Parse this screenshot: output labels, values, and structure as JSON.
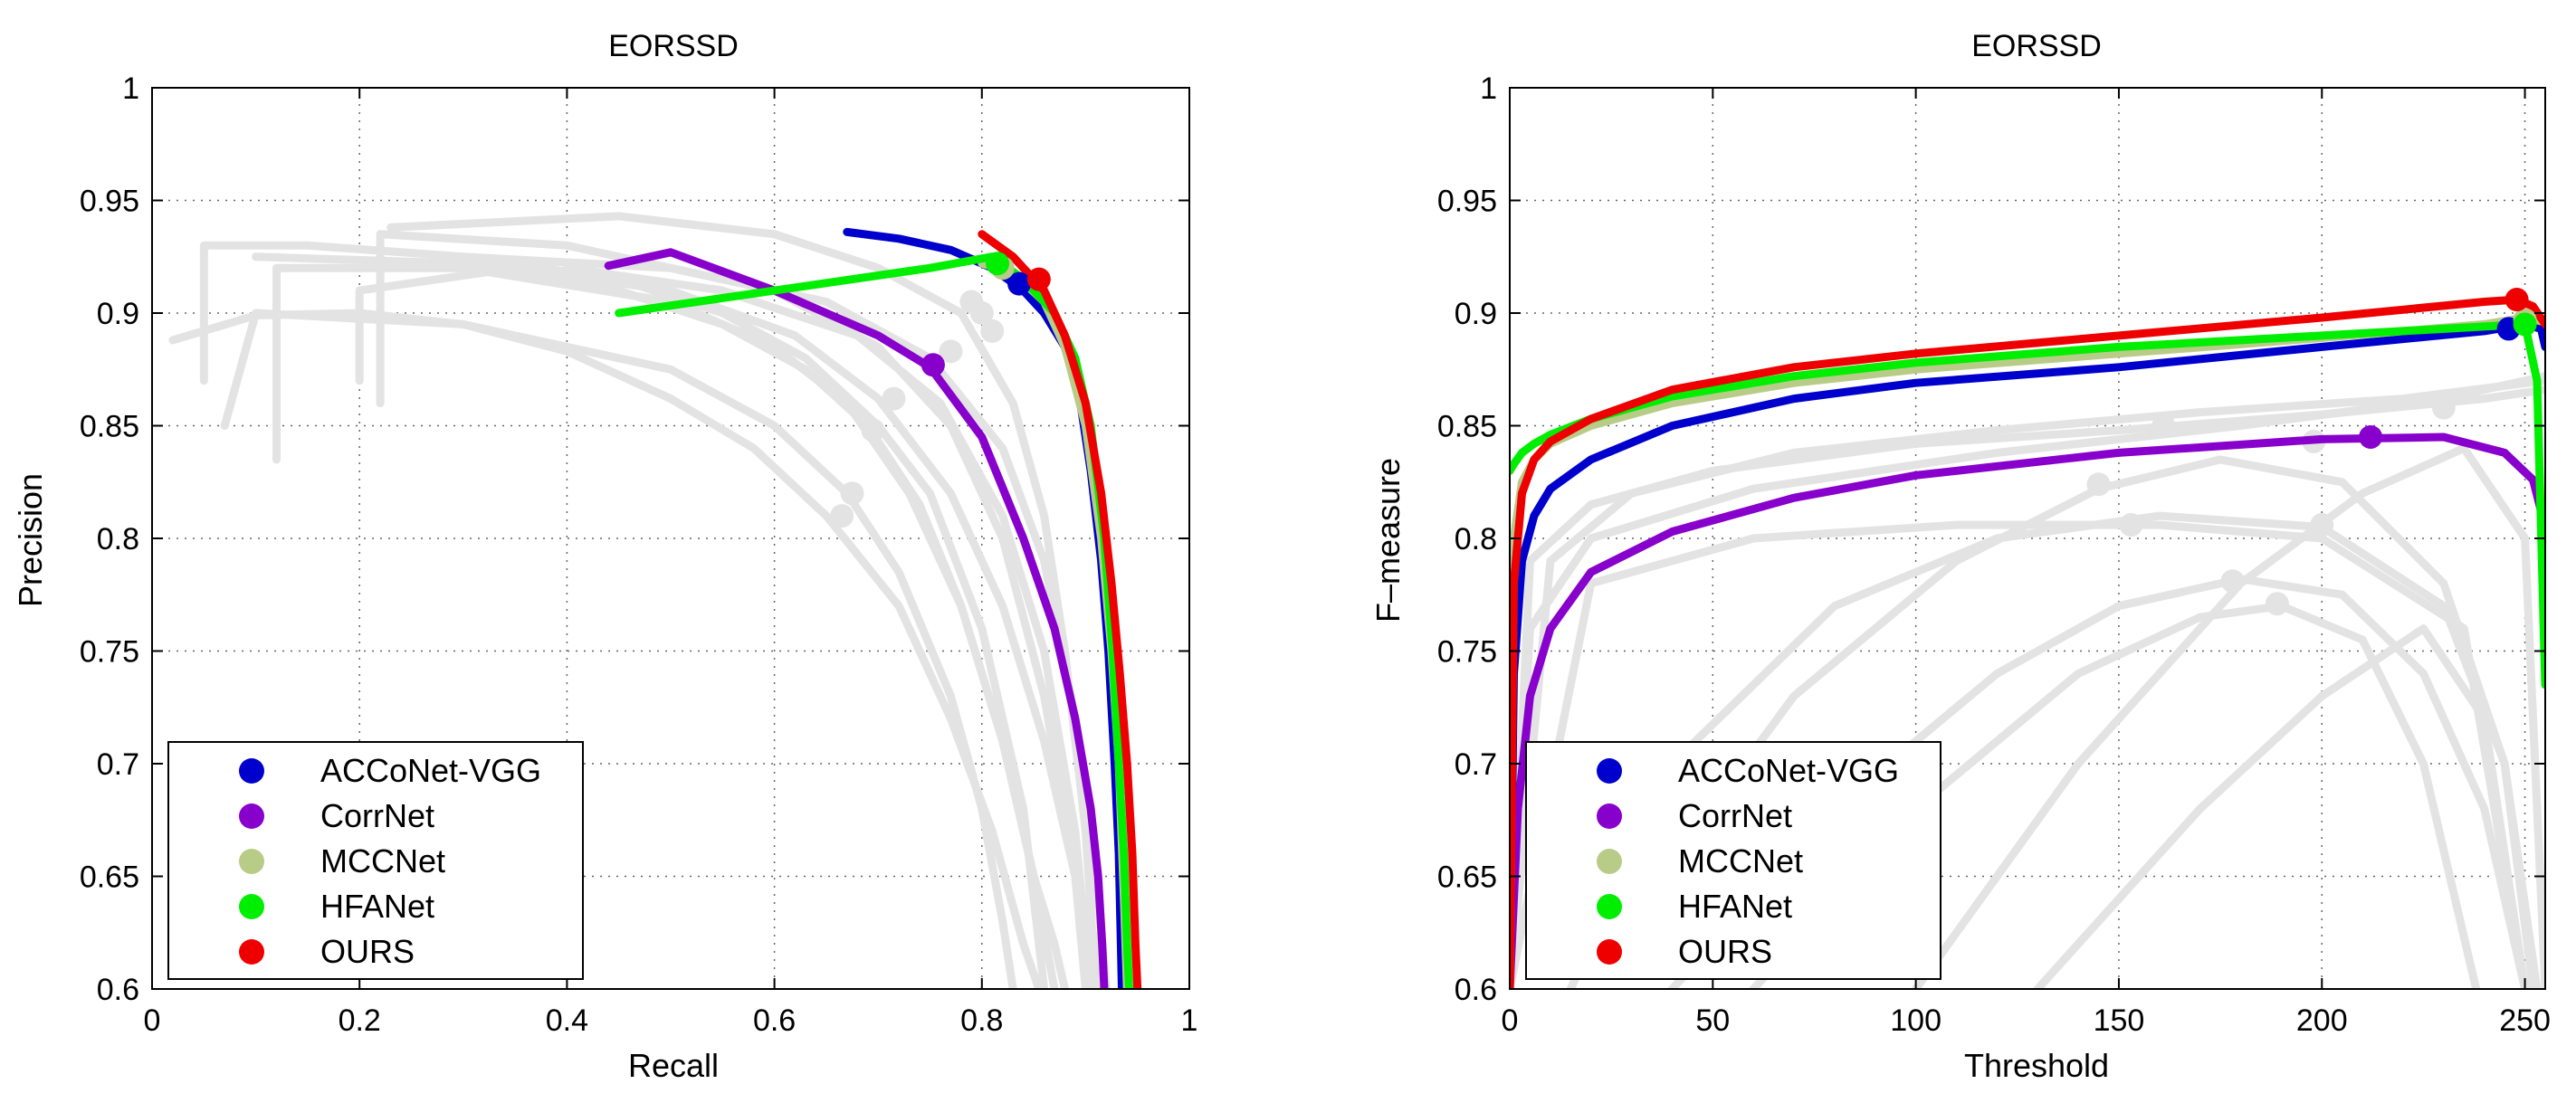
{
  "chart_data": [
    {
      "type": "line",
      "title": "EORSSD",
      "xlabel": "Recall",
      "ylabel": "Precision",
      "xlim": [
        0,
        1
      ],
      "ylim": [
        0.6,
        1
      ],
      "xticks": [
        0,
        0.2,
        0.4,
        0.6,
        0.8,
        1
      ],
      "xtick_labels": [
        "0",
        "0.2",
        "0.4",
        "0.6",
        "0.8",
        "1"
      ],
      "yticks": [
        0.6,
        0.65,
        0.7,
        0.75,
        0.8,
        0.85,
        0.9,
        0.95,
        1
      ],
      "ytick_labels": [
        "0.6",
        "0.65",
        "0.7",
        "0.75",
        "0.8",
        "0.85",
        "0.9",
        "0.95",
        "1"
      ],
      "grid": true,
      "legend_position": "bottom-left",
      "series": [
        {
          "name": "ACCoNet-VGG",
          "color": "#0000cc",
          "x": [
            0.67,
            0.72,
            0.77,
            0.81,
            0.84,
            0.86,
            0.88,
            0.895,
            0.905,
            0.915,
            0.922,
            0.928,
            0.932,
            0.934,
            0.935
          ],
          "y": [
            0.936,
            0.933,
            0.928,
            0.92,
            0.91,
            0.9,
            0.885,
            0.86,
            0.83,
            0.79,
            0.75,
            0.7,
            0.66,
            0.62,
            0.6
          ],
          "marker": {
            "x": 0.836,
            "y": 0.913
          }
        },
        {
          "name": "CorrNet",
          "color": "#8800cc",
          "x": [
            0.44,
            0.5,
            0.6,
            0.7,
            0.75,
            0.8,
            0.84,
            0.87,
            0.89,
            0.905,
            0.912,
            0.916,
            0.918
          ],
          "y": [
            0.921,
            0.927,
            0.91,
            0.89,
            0.876,
            0.845,
            0.8,
            0.76,
            0.72,
            0.68,
            0.65,
            0.62,
            0.6
          ],
          "marker": {
            "x": 0.753,
            "y": 0.877
          }
        },
        {
          "name": "MCCNet",
          "color": "#b8cc88",
          "x": [
            0.8,
            0.83,
            0.86,
            0.88,
            0.9,
            0.915,
            0.925,
            0.932,
            0.937,
            0.94
          ],
          "y": [
            0.922,
            0.918,
            0.905,
            0.885,
            0.85,
            0.8,
            0.75,
            0.7,
            0.64,
            0.6
          ],
          "marker": {
            "x": 0.82,
            "y": 0.92
          }
        },
        {
          "name": "HFANet",
          "color": "#00ee00",
          "x": [
            0.45,
            0.6,
            0.75,
            0.81,
            0.84,
            0.87,
            0.89,
            0.905,
            0.918,
            0.926,
            0.932,
            0.937,
            0.94,
            0.942
          ],
          "y": [
            0.9,
            0.91,
            0.92,
            0.925,
            0.915,
            0.9,
            0.88,
            0.85,
            0.8,
            0.75,
            0.7,
            0.66,
            0.62,
            0.6
          ],
          "marker": {
            "x": 0.815,
            "y": 0.922
          }
        },
        {
          "name": "OURS",
          "color": "#ee0000",
          "x": [
            0.8,
            0.83,
            0.86,
            0.88,
            0.9,
            0.915,
            0.925,
            0.933,
            0.94,
            0.945,
            0.948,
            0.95
          ],
          "y": [
            0.935,
            0.925,
            0.91,
            0.89,
            0.86,
            0.82,
            0.78,
            0.74,
            0.7,
            0.66,
            0.62,
            0.6
          ],
          "marker": {
            "x": 0.855,
            "y": 0.915
          }
        }
      ],
      "background_series": [
        {
          "x": [
            0.05,
            0.05,
            0.15,
            0.3,
            0.45,
            0.55,
            0.63,
            0.7,
            0.75,
            0.8,
            0.84,
            0.86
          ],
          "y": [
            0.87,
            0.93,
            0.93,
            0.925,
            0.915,
            0.9,
            0.88,
            0.85,
            0.82,
            0.76,
            0.68,
            0.6
          ]
        },
        {
          "x": [
            0.02,
            0.1,
            0.2,
            0.3,
            0.4,
            0.5,
            0.58,
            0.65,
            0.72,
            0.77,
            0.81,
            0.84,
            0.855
          ],
          "y": [
            0.888,
            0.899,
            0.9,
            0.895,
            0.883,
            0.862,
            0.84,
            0.81,
            0.77,
            0.72,
            0.67,
            0.62,
            0.6
          ]
        },
        {
          "x": [
            0.12,
            0.12,
            0.3,
            0.5,
            0.6,
            0.67,
            0.73,
            0.78,
            0.82,
            0.85,
            0.87
          ],
          "y": [
            0.835,
            0.92,
            0.92,
            0.905,
            0.885,
            0.86,
            0.82,
            0.77,
            0.71,
            0.65,
            0.6
          ]
        },
        {
          "x": [
            0.22,
            0.22,
            0.4,
            0.6,
            0.7,
            0.77,
            0.82,
            0.86,
            0.89,
            0.9
          ],
          "y": [
            0.86,
            0.935,
            0.93,
            0.91,
            0.885,
            0.85,
            0.8,
            0.73,
            0.65,
            0.6
          ]
        },
        {
          "x": [
            0.23,
            0.45,
            0.6,
            0.7,
            0.78,
            0.83,
            0.86,
            0.88,
            0.9,
            0.91
          ],
          "y": [
            0.938,
            0.943,
            0.935,
            0.92,
            0.9,
            0.86,
            0.81,
            0.75,
            0.67,
            0.6
          ]
        },
        {
          "x": [
            0.1,
            0.3,
            0.45,
            0.55,
            0.63,
            0.69,
            0.74,
            0.78,
            0.82,
            0.85,
            0.87,
            0.88
          ],
          "y": [
            0.925,
            0.922,
            0.91,
            0.895,
            0.875,
            0.85,
            0.815,
            0.77,
            0.71,
            0.65,
            0.62,
            0.6
          ]
        },
        {
          "x": [
            0.2,
            0.2,
            0.35,
            0.5,
            0.62,
            0.7,
            0.77,
            0.82,
            0.86,
            0.89,
            0.91,
            0.92
          ],
          "y": [
            0.87,
            0.91,
            0.92,
            0.91,
            0.89,
            0.862,
            0.82,
            0.77,
            0.71,
            0.65,
            0.62,
            0.6
          ]
        },
        {
          "x": [
            0.07,
            0.1,
            0.3,
            0.5,
            0.6,
            0.67,
            0.72,
            0.77,
            0.8,
            0.82,
            0.83
          ],
          "y": [
            0.85,
            0.9,
            0.895,
            0.875,
            0.85,
            0.82,
            0.785,
            0.73,
            0.68,
            0.63,
            0.6
          ]
        },
        {
          "x": [
            0.3,
            0.5,
            0.65,
            0.75,
            0.82,
            0.86,
            0.89,
            0.91,
            0.92
          ],
          "y": [
            0.925,
            0.92,
            0.905,
            0.88,
            0.84,
            0.79,
            0.72,
            0.65,
            0.6
          ]
        },
        {
          "x": [
            0.4,
            0.55,
            0.68,
            0.76,
            0.82,
            0.86,
            0.89,
            0.905
          ],
          "y": [
            0.92,
            0.91,
            0.89,
            0.86,
            0.81,
            0.75,
            0.67,
            0.6
          ]
        }
      ],
      "background_markers": [
        {
          "x": 0.665,
          "y": 0.81
        },
        {
          "x": 0.675,
          "y": 0.82
        },
        {
          "x": 0.695,
          "y": 0.848
        },
        {
          "x": 0.715,
          "y": 0.862
        },
        {
          "x": 0.77,
          "y": 0.883
        },
        {
          "x": 0.8,
          "y": 0.9
        },
        {
          "x": 0.81,
          "y": 0.892
        },
        {
          "x": 0.79,
          "y": 0.905
        }
      ]
    },
    {
      "type": "line",
      "title": "EORSSD",
      "xlabel": "Threshold",
      "ylabel": "F–measure",
      "xlim": [
        0,
        255
      ],
      "ylim": [
        0.6,
        1
      ],
      "xticks": [
        0,
        50,
        100,
        150,
        200,
        250
      ],
      "xtick_labels": [
        "0",
        "50",
        "100",
        "150",
        "200",
        "250"
      ],
      "yticks": [
        0.6,
        0.65,
        0.7,
        0.75,
        0.8,
        0.85,
        0.9,
        0.95,
        1
      ],
      "ytick_labels": [
        "0.6",
        "0.65",
        "0.7",
        "0.75",
        "0.8",
        "0.85",
        "0.9",
        "0.95",
        "1"
      ],
      "grid": true,
      "legend_position": "bottom-left",
      "series": [
        {
          "name": "ACCoNet-VGG",
          "color": "#0000cc",
          "x": [
            0,
            1,
            3,
            6,
            10,
            20,
            40,
            70,
            100,
            150,
            200,
            240,
            250,
            254,
            255
          ],
          "y": [
            0.6,
            0.74,
            0.79,
            0.81,
            0.822,
            0.835,
            0.85,
            0.862,
            0.869,
            0.876,
            0.885,
            0.892,
            0.895,
            0.893,
            0.885
          ],
          "marker": {
            "x": 246,
            "y": 0.893
          }
        },
        {
          "name": "CorrNet",
          "color": "#8800cc",
          "x": [
            0,
            2,
            5,
            10,
            20,
            40,
            70,
            100,
            150,
            200,
            230,
            245,
            252,
            255
          ],
          "y": [
            0.6,
            0.68,
            0.73,
            0.76,
            0.785,
            0.803,
            0.818,
            0.828,
            0.838,
            0.844,
            0.845,
            0.838,
            0.826,
            0.805
          ],
          "marker": {
            "x": 212,
            "y": 0.845
          }
        },
        {
          "name": "MCCNet",
          "color": "#b8cc88",
          "x": [
            0,
            1,
            3,
            6,
            10,
            20,
            40,
            70,
            100,
            150,
            200,
            240,
            250,
            255
          ],
          "y": [
            0.6,
            0.8,
            0.825,
            0.835,
            0.842,
            0.85,
            0.86,
            0.869,
            0.875,
            0.882,
            0.889,
            0.895,
            0.898,
            0.896
          ],
          "marker": {
            "x": 250,
            "y": 0.897
          }
        },
        {
          "name": "HFANet",
          "color": "#00ee00",
          "x": [
            0,
            1,
            3,
            6,
            10,
            20,
            40,
            70,
            100,
            150,
            200,
            240,
            250,
            253,
            255
          ],
          "y": [
            0.83,
            0.833,
            0.838,
            0.842,
            0.846,
            0.853,
            0.863,
            0.872,
            0.878,
            0.885,
            0.89,
            0.894,
            0.895,
            0.87,
            0.735
          ],
          "marker": {
            "x": 250,
            "y": 0.895
          }
        },
        {
          "name": "OURS",
          "color": "#ee0000",
          "x": [
            0,
            1,
            3,
            6,
            10,
            20,
            40,
            70,
            100,
            150,
            200,
            240,
            248,
            252,
            255
          ],
          "y": [
            0.6,
            0.78,
            0.82,
            0.835,
            0.843,
            0.853,
            0.866,
            0.876,
            0.882,
            0.89,
            0.898,
            0.905,
            0.906,
            0.903,
            0.895
          ],
          "marker": {
            "x": 248,
            "y": 0.906
          }
        }
      ],
      "background_series": [
        {
          "x": [
            0,
            5,
            20,
            50,
            100,
            150,
            200,
            240,
            255
          ],
          "y": [
            0.6,
            0.79,
            0.815,
            0.83,
            0.842,
            0.848,
            0.855,
            0.862,
            0.866
          ]
        },
        {
          "x": [
            0,
            5,
            20,
            60,
            120,
            180,
            230,
            255
          ],
          "y": [
            0.6,
            0.76,
            0.8,
            0.822,
            0.838,
            0.85,
            0.862,
            0.872
          ]
        },
        {
          "x": [
            0,
            10,
            30,
            70,
            120,
            170,
            220,
            255
          ],
          "y": [
            0.6,
            0.79,
            0.82,
            0.838,
            0.848,
            0.856,
            0.862,
            0.87
          ]
        },
        {
          "x": [
            15,
            40,
            80,
            120,
            160,
            200,
            230,
            245,
            253
          ],
          "y": [
            0.6,
            0.7,
            0.77,
            0.8,
            0.81,
            0.805,
            0.77,
            0.7,
            0.6
          ]
        },
        {
          "x": [
            40,
            80,
            120,
            150,
            180,
            205,
            225,
            240,
            250
          ],
          "y": [
            0.6,
            0.68,
            0.74,
            0.77,
            0.782,
            0.775,
            0.74,
            0.68,
            0.6
          ]
        },
        {
          "x": [
            60,
            100,
            140,
            170,
            190,
            210,
            225,
            238
          ],
          "y": [
            0.6,
            0.68,
            0.74,
            0.765,
            0.77,
            0.755,
            0.7,
            0.6
          ]
        },
        {
          "x": [
            25,
            70,
            110,
            145,
            175,
            205,
            230,
            245,
            252
          ],
          "y": [
            0.62,
            0.73,
            0.79,
            0.822,
            0.835,
            0.825,
            0.78,
            0.7,
            0.6
          ]
        },
        {
          "x": [
            100,
            140,
            180,
            210,
            235,
            250,
            255
          ],
          "y": [
            0.6,
            0.7,
            0.78,
            0.82,
            0.84,
            0.8,
            0.6
          ]
        },
        {
          "x": [
            0,
            20,
            60,
            110,
            160,
            200,
            235,
            250
          ],
          "y": [
            0.6,
            0.78,
            0.8,
            0.806,
            0.806,
            0.8,
            0.76,
            0.6
          ]
        },
        {
          "x": [
            130,
            170,
            200,
            225,
            240,
            250
          ],
          "y": [
            0.6,
            0.68,
            0.73,
            0.76,
            0.72,
            0.6
          ]
        }
      ],
      "background_markers": [
        {
          "x": 145,
          "y": 0.824
        },
        {
          "x": 153,
          "y": 0.806
        },
        {
          "x": 178,
          "y": 0.781
        },
        {
          "x": 189,
          "y": 0.771
        },
        {
          "x": 198,
          "y": 0.843
        },
        {
          "x": 161,
          "y": 0.85
        },
        {
          "x": 200,
          "y": 0.806
        },
        {
          "x": 230,
          "y": 0.858
        }
      ]
    }
  ]
}
